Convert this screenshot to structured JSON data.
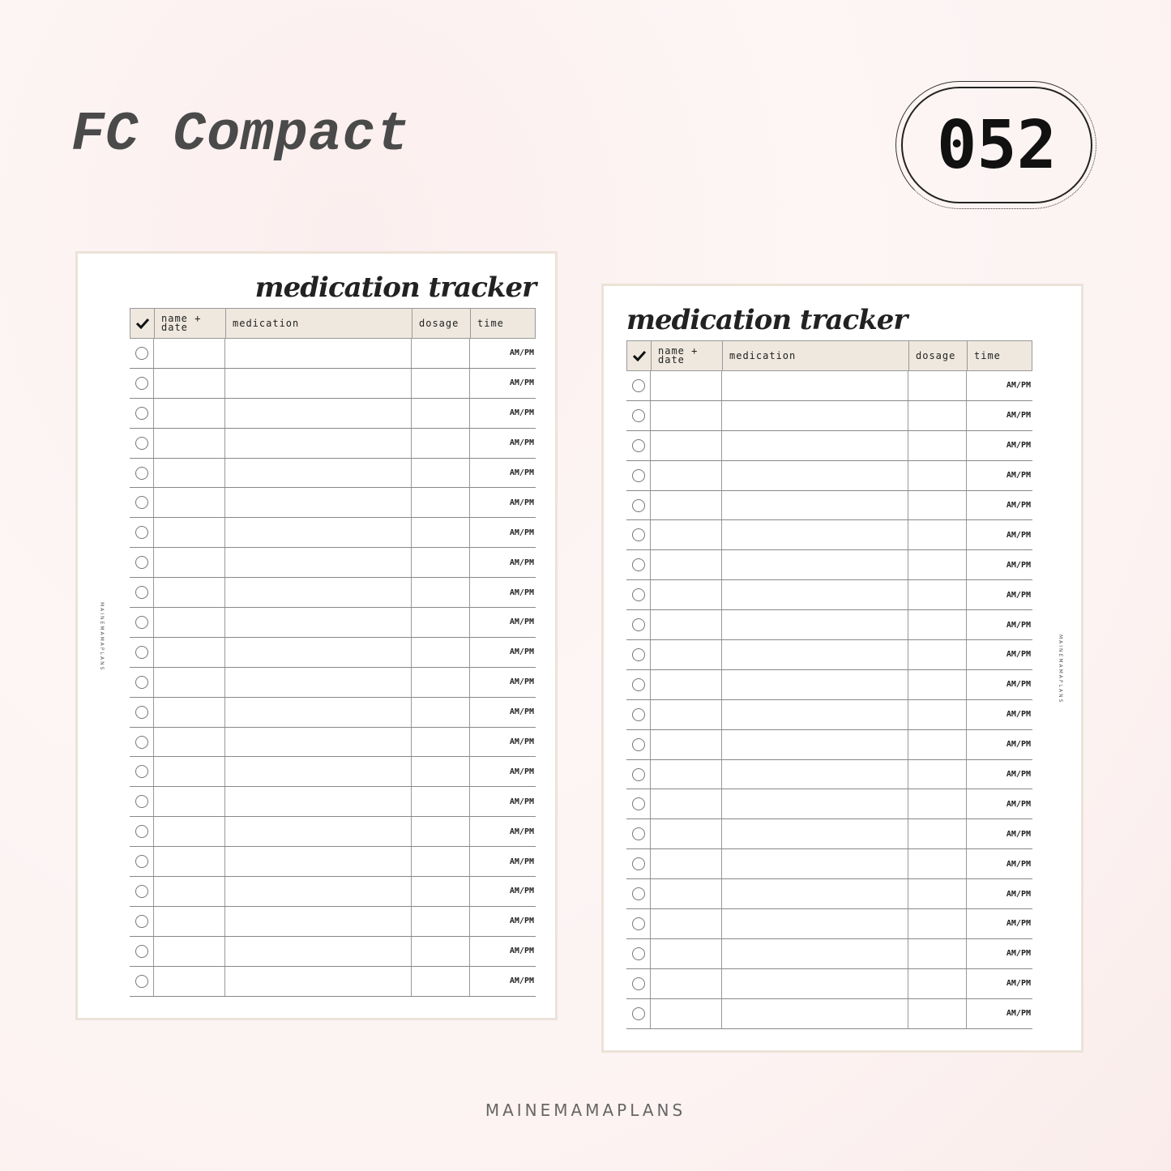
{
  "heading": "FC Compact",
  "badge": "052",
  "footer": "MAINEMAMAPLANS",
  "colors": {
    "header_bg": "#eee8de",
    "page_border": "#ebe3d8",
    "background": "#fcf3f2"
  },
  "pages": [
    {
      "title": "medication tracker",
      "brand": "MAINEMAMAPLANS"
    },
    {
      "title": "medication tracker",
      "brand": "MAINEMAMAPLANS"
    }
  ],
  "table": {
    "check_icon": "checkmark-icon",
    "columns": [
      "name +\ndate",
      "medication",
      "dosage",
      "time"
    ],
    "row_time_label": "AM/PM",
    "row_count": 22
  }
}
